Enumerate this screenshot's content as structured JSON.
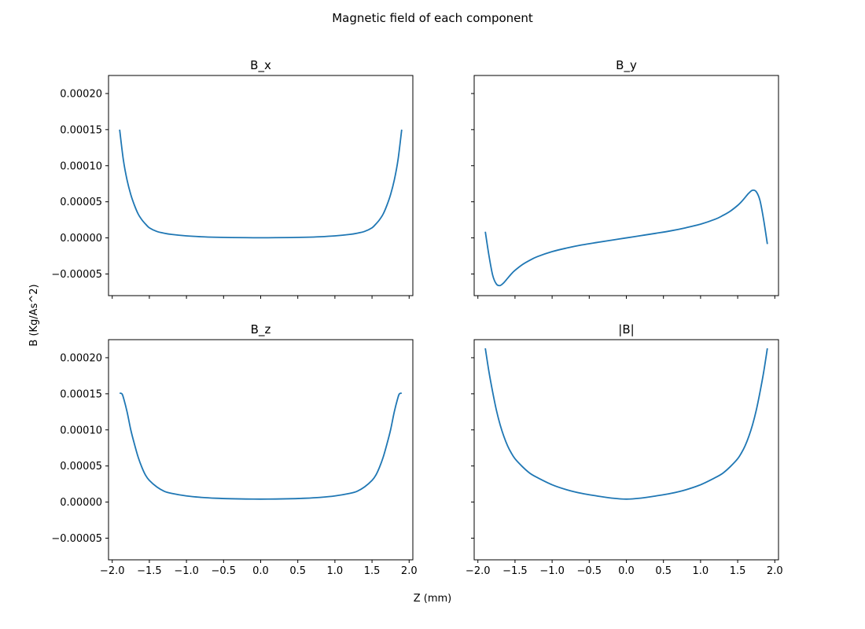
{
  "figure": {
    "suptitle": "Magnetic field of each component",
    "xlabel": "Z (mm)",
    "ylabel": "B (Kg/As^2)",
    "line_color": "#1f77b4"
  },
  "chart_data": [
    {
      "type": "line",
      "title": "B_x",
      "xlim": [
        -2.05,
        2.05
      ],
      "ylim": [
        -8e-05,
        0.000225
      ],
      "xticks": [
        -2.0,
        -1.5,
        -1.0,
        -0.5,
        0.0,
        0.5,
        1.0,
        1.5,
        2.0
      ],
      "xtick_labels": [
        "−2.0",
        "−1.5",
        "−1.0",
        "−0.5",
        "0.0",
        "0.5",
        "1.0",
        "1.5",
        "2.0"
      ],
      "show_xtick_labels": false,
      "yticks": [
        -5e-05,
        0.0,
        5e-05,
        0.0001,
        0.00015,
        0.0002
      ],
      "ytick_labels": [
        "−0.00005",
        "0.00000",
        "0.00005",
        "0.00010",
        "0.00015",
        "0.00020"
      ],
      "show_ytick_labels": true,
      "grid": false,
      "x": [
        -1.9,
        -1.85,
        -1.8,
        -1.75,
        -1.7,
        -1.65,
        -1.6,
        -1.55,
        -1.5,
        -1.4,
        -1.3,
        -1.2,
        -1.0,
        -0.8,
        -0.6,
        -0.4,
        -0.2,
        0.0,
        0.2,
        0.4,
        0.6,
        0.8,
        1.0,
        1.2,
        1.3,
        1.4,
        1.5,
        1.55,
        1.6,
        1.65,
        1.7,
        1.75,
        1.8,
        1.85,
        1.9
      ],
      "y": [
        0.00015,
        0.000108,
        8e-05,
        6e-05,
        4.5e-05,
        3.3e-05,
        2.5e-05,
        1.9e-05,
        1.4e-05,
        9e-06,
        6.5e-06,
        4.8e-06,
        2.8e-06,
        1.6e-06,
        9e-07,
        5e-07,
        3e-07,
        2e-07,
        3e-07,
        5e-07,
        9e-07,
        1.6e-06,
        2.8e-06,
        4.8e-06,
        6.5e-06,
        9e-06,
        1.4e-05,
        1.9e-05,
        2.5e-05,
        3.3e-05,
        4.5e-05,
        6e-05,
        8e-05,
        0.000108,
        0.00015
      ]
    },
    {
      "type": "line",
      "title": "B_y",
      "xlim": [
        -2.05,
        2.05
      ],
      "ylim": [
        -8e-05,
        0.000225
      ],
      "xticks": [
        -2.0,
        -1.5,
        -1.0,
        -0.5,
        0.0,
        0.5,
        1.0,
        1.5,
        2.0
      ],
      "xtick_labels": [
        "−2.0",
        "−1.5",
        "−1.0",
        "−0.5",
        "0.0",
        "0.5",
        "1.0",
        "1.5",
        "2.0"
      ],
      "show_xtick_labels": false,
      "yticks": [
        -5e-05,
        0.0,
        5e-05,
        0.0001,
        0.00015,
        0.0002
      ],
      "ytick_labels": [
        "−0.00005",
        "0.00000",
        "0.00005",
        "0.00010",
        "0.00015",
        "0.00020"
      ],
      "show_ytick_labels": false,
      "grid": false,
      "x": [
        -1.9,
        -1.85,
        -1.8,
        -1.75,
        -1.7,
        -1.65,
        -1.6,
        -1.55,
        -1.5,
        -1.4,
        -1.3,
        -1.2,
        -1.0,
        -0.8,
        -0.6,
        -0.4,
        -0.2,
        0.0,
        0.2,
        0.4,
        0.6,
        0.8,
        1.0,
        1.2,
        1.3,
        1.4,
        1.5,
        1.55,
        1.6,
        1.65,
        1.7,
        1.75,
        1.8,
        1.85,
        1.9
      ],
      "y": [
        8.5e-06,
        -2.5e-05,
        -5.2e-05,
        -6.4e-05,
        -6.6e-05,
        -6.2e-05,
        -5.6e-05,
        -5e-05,
        -4.5e-05,
        -3.7e-05,
        -3.1e-05,
        -2.6e-05,
        -1.9e-05,
        -1.4e-05,
        -9.8e-06,
        -6.4e-06,
        -3.2e-06,
        0.0,
        3.2e-06,
        6.4e-06,
        9.8e-06,
        1.4e-05,
        1.9e-05,
        2.6e-05,
        3.1e-05,
        3.7e-05,
        4.5e-05,
        5e-05,
        5.6e-05,
        6.2e-05,
        6.6e-05,
        6.4e-05,
        5.2e-05,
        2.5e-05,
        -8.5e-06
      ]
    },
    {
      "type": "line",
      "title": "B_z",
      "xlim": [
        -2.05,
        2.05
      ],
      "ylim": [
        -8e-05,
        0.000225
      ],
      "xticks": [
        -2.0,
        -1.5,
        -1.0,
        -0.5,
        0.0,
        0.5,
        1.0,
        1.5,
        2.0
      ],
      "xtick_labels": [
        "−2.0",
        "−1.5",
        "−1.0",
        "−0.5",
        "0.0",
        "0.5",
        "1.0",
        "1.5",
        "2.0"
      ],
      "show_xtick_labels": true,
      "yticks": [
        -5e-05,
        0.0,
        5e-05,
        0.0001,
        0.00015,
        0.0002
      ],
      "ytick_labels": [
        "−0.00005",
        "0.00000",
        "0.00005",
        "0.00010",
        "0.00015",
        "0.00020"
      ],
      "show_ytick_labels": true,
      "grid": false,
      "x": [
        -1.9,
        -1.87,
        -1.85,
        -1.8,
        -1.75,
        -1.7,
        -1.65,
        -1.6,
        -1.55,
        -1.5,
        -1.4,
        -1.3,
        -1.2,
        -1.0,
        -0.8,
        -0.6,
        -0.4,
        -0.2,
        0.0,
        0.2,
        0.4,
        0.6,
        0.8,
        1.0,
        1.2,
        1.3,
        1.4,
        1.5,
        1.55,
        1.6,
        1.65,
        1.7,
        1.75,
        1.8,
        1.85,
        1.87,
        1.9
      ],
      "y": [
        0.000151,
        0.00015,
        0.000145,
        0.000125,
        0.0001,
        8e-05,
        6.2e-05,
        4.8e-05,
        3.7e-05,
        3e-05,
        2.1e-05,
        1.5e-05,
        1.2e-05,
        8.5e-06,
        6.5e-06,
        5.3e-06,
        4.6e-06,
        4.2e-06,
        4.1e-06,
        4.2e-06,
        4.6e-06,
        5.3e-06,
        6.5e-06,
        8.5e-06,
        1.2e-05,
        1.5e-05,
        2.1e-05,
        3e-05,
        3.7e-05,
        4.8e-05,
        6.2e-05,
        8e-05,
        0.0001,
        0.000125,
        0.000145,
        0.00015,
        0.000151
      ]
    },
    {
      "type": "line",
      "title": "|B|",
      "xlim": [
        -2.05,
        2.05
      ],
      "ylim": [
        -8e-05,
        0.000225
      ],
      "xticks": [
        -2.0,
        -1.5,
        -1.0,
        -0.5,
        0.0,
        0.5,
        1.0,
        1.5,
        2.0
      ],
      "xtick_labels": [
        "−2.0",
        "−1.5",
        "−1.0",
        "−0.5",
        "0.0",
        "0.5",
        "1.0",
        "1.5",
        "2.0"
      ],
      "show_xtick_labels": true,
      "yticks": [
        -5e-05,
        0.0,
        5e-05,
        0.0001,
        0.00015,
        0.0002
      ],
      "ytick_labels": [
        "−0.00005",
        "0.00000",
        "0.00005",
        "0.00010",
        "0.00015",
        "0.00020"
      ],
      "show_ytick_labels": false,
      "grid": false,
      "x": [
        -1.9,
        -1.85,
        -1.8,
        -1.75,
        -1.7,
        -1.65,
        -1.6,
        -1.55,
        -1.5,
        -1.4,
        -1.3,
        -1.2,
        -1.0,
        -0.8,
        -0.6,
        -0.4,
        -0.2,
        0.0,
        0.2,
        0.4,
        0.6,
        0.8,
        1.0,
        1.2,
        1.3,
        1.4,
        1.5,
        1.55,
        1.6,
        1.65,
        1.7,
        1.75,
        1.8,
        1.85,
        1.9
      ],
      "y": [
        0.000213,
        0.00018,
        0.000152,
        0.000127,
        0.000107,
        9.1e-05,
        7.8e-05,
        6.8e-05,
        6e-05,
        4.9e-05,
        4e-05,
        3.4e-05,
        2.4e-05,
        1.7e-05,
        1.2e-05,
        8.5e-06,
        5.5e-06,
        4.1e-06,
        5.5e-06,
        8.5e-06,
        1.2e-05,
        1.7e-05,
        2.4e-05,
        3.4e-05,
        4e-05,
        4.9e-05,
        6e-05,
        6.8e-05,
        7.8e-05,
        9.1e-05,
        0.000107,
        0.000127,
        0.000152,
        0.00018,
        0.000213
      ]
    }
  ]
}
